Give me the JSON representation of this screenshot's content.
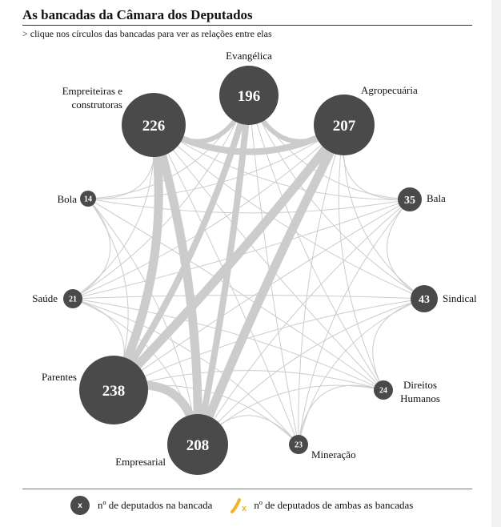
{
  "header": {
    "title": "As bancadas da Câmara dos Deputados",
    "subtitle": "> clique nos círculos das bancadas para ver as relações entre elas"
  },
  "nodes": [
    {
      "id": "evangelica",
      "label": "Evangélica",
      "count": 196
    },
    {
      "id": "agropecuaria",
      "label": "Agropecuária",
      "count": 207
    },
    {
      "id": "bala",
      "label": "Bala",
      "count": 35
    },
    {
      "id": "sindical",
      "label": "Sindical",
      "count": 43
    },
    {
      "id": "direitos-humanos",
      "label": "Direitos Humanos",
      "count": 24
    },
    {
      "id": "mineracao",
      "label": "Mineração",
      "count": 23
    },
    {
      "id": "empresarial",
      "label": "Empresarial",
      "count": 208
    },
    {
      "id": "parentes",
      "label": "Parentes",
      "count": 238
    },
    {
      "id": "saude",
      "label": "Saúde",
      "count": 21
    },
    {
      "id": "bola",
      "label": "Bola",
      "count": 14
    },
    {
      "id": "empreiteiras",
      "label": "Empreiteiras e construtoras",
      "count": 226
    }
  ],
  "links": [
    {
      "source": "empresarial",
      "target": "parentes",
      "weight": 5
    },
    {
      "source": "empreiteiras",
      "target": "parentes",
      "weight": 5
    },
    {
      "source": "empreiteiras",
      "target": "empresarial",
      "weight": 5
    },
    {
      "source": "agropecuaria",
      "target": "parentes",
      "weight": 5
    },
    {
      "source": "agropecuaria",
      "target": "empresarial",
      "weight": 5
    },
    {
      "source": "evangelica",
      "target": "parentes",
      "weight": 4
    },
    {
      "source": "evangelica",
      "target": "empresarial",
      "weight": 4
    },
    {
      "source": "empreiteiras",
      "target": "agropecuaria",
      "weight": 4
    },
    {
      "source": "evangelica",
      "target": "empreiteiras",
      "weight": 3
    },
    {
      "source": "evangelica",
      "target": "agropecuaria",
      "weight": 3
    },
    {
      "source": "empreiteiras",
      "target": "sindical",
      "weight": 1
    },
    {
      "source": "empreiteiras",
      "target": "bala",
      "weight": 1
    },
    {
      "source": "empreiteiras",
      "target": "mineracao",
      "weight": 1
    },
    {
      "source": "empreiteiras",
      "target": "direitos-humanos",
      "weight": 1
    },
    {
      "source": "empreiteiras",
      "target": "saude",
      "weight": 1
    },
    {
      "source": "empreiteiras",
      "target": "bola",
      "weight": 1
    },
    {
      "source": "evangelica",
      "target": "bala",
      "weight": 1
    },
    {
      "source": "evangelica",
      "target": "sindical",
      "weight": 1
    },
    {
      "source": "evangelica",
      "target": "saude",
      "weight": 1
    },
    {
      "source": "evangelica",
      "target": "bola",
      "weight": 1
    },
    {
      "source": "evangelica",
      "target": "mineracao",
      "weight": 1
    },
    {
      "source": "evangelica",
      "target": "direitos-humanos",
      "weight": 1
    },
    {
      "source": "agropecuaria",
      "target": "bala",
      "weight": 1
    },
    {
      "source": "agropecuaria",
      "target": "sindical",
      "weight": 1
    },
    {
      "source": "agropecuaria",
      "target": "saude",
      "weight": 1
    },
    {
      "source": "agropecuaria",
      "target": "bola",
      "weight": 1
    },
    {
      "source": "agropecuaria",
      "target": "mineracao",
      "weight": 1
    },
    {
      "source": "agropecuaria",
      "target": "direitos-humanos",
      "weight": 1
    },
    {
      "source": "parentes",
      "target": "bala",
      "weight": 1
    },
    {
      "source": "parentes",
      "target": "sindical",
      "weight": 1
    },
    {
      "source": "parentes",
      "target": "saude",
      "weight": 1
    },
    {
      "source": "parentes",
      "target": "bola",
      "weight": 1
    },
    {
      "source": "parentes",
      "target": "mineracao",
      "weight": 1
    },
    {
      "source": "parentes",
      "target": "direitos-humanos",
      "weight": 1
    },
    {
      "source": "empresarial",
      "target": "bala",
      "weight": 1
    },
    {
      "source": "empresarial",
      "target": "sindical",
      "weight": 1
    },
    {
      "source": "empresarial",
      "target": "saude",
      "weight": 1
    },
    {
      "source": "empresarial",
      "target": "bola",
      "weight": 1
    },
    {
      "source": "empresarial",
      "target": "mineracao",
      "weight": 1
    },
    {
      "source": "empresarial",
      "target": "direitos-humanos",
      "weight": 1
    },
    {
      "source": "bala",
      "target": "saude",
      "weight": 1
    },
    {
      "source": "bala",
      "target": "bola",
      "weight": 1
    },
    {
      "source": "bala",
      "target": "sindical",
      "weight": 1
    },
    {
      "source": "bala",
      "target": "mineracao",
      "weight": 1
    },
    {
      "source": "sindical",
      "target": "direitos-humanos",
      "weight": 1
    },
    {
      "source": "sindical",
      "target": "saude",
      "weight": 1
    },
    {
      "source": "sindical",
      "target": "mineracao",
      "weight": 1
    },
    {
      "source": "saude",
      "target": "bola",
      "weight": 1
    },
    {
      "source": "saude",
      "target": "mineracao",
      "weight": 1
    },
    {
      "source": "bola",
      "target": "direitos-humanos",
      "weight": 1
    },
    {
      "source": "direitos-humanos",
      "target": "mineracao",
      "weight": 1
    },
    {
      "source": "saude",
      "target": "direitos-humanos",
      "weight": 1
    }
  ],
  "legend": {
    "node_symbol": "x",
    "node_text": "nº de deputados na bancada",
    "link_symbol": "x",
    "link_text": "nº de deputados de ambas as bancadas",
    "link_color": "#f0b42c"
  },
  "colors": {
    "node": "#4a4a4a",
    "link": "#cccccc"
  }
}
